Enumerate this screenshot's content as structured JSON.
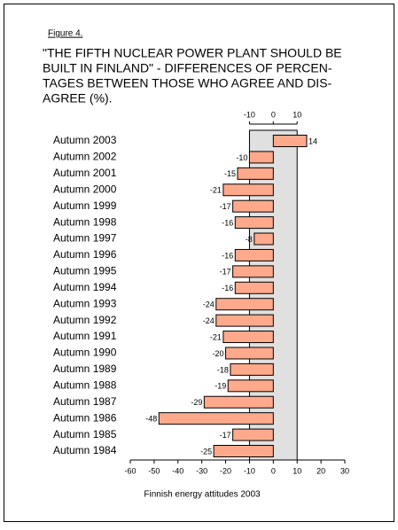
{
  "chart_data": {
    "type": "bar",
    "orientation": "horizontal",
    "figure_label": "Figure 4.",
    "title_lines": [
      "\"THE FIFTH NUCLEAR POWER PLANT SHOULD BE",
      "BUILT IN FINLAND\" - DIFFERENCES OF PERCEN-",
      "TAGES BETWEEN THOSE WHO AGREE AND DIS-",
      "AGREE (%)."
    ],
    "caption": "Finnish energy attitudes 2003",
    "categories": [
      "Autumn 2003",
      "Autumn 2002",
      "Autumn 2001",
      "Autumn 2000",
      "Autumn 1999",
      "Autumn 1998",
      "Autumn 1997",
      "Autumn 1996",
      "Autumn 1995",
      "Autumn 1994",
      "Autumn 1993",
      "Autumn 1992",
      "Autumn 1991",
      "Autumn 1990",
      "Autumn 1989",
      "Autumn 1988",
      "Autumn 1987",
      "Autumn 1986",
      "Autumn 1985",
      "Autumn 1984"
    ],
    "values": [
      14,
      -10,
      -15,
      -21,
      -17,
      -16,
      -8,
      -16,
      -17,
      -16,
      -24,
      -24,
      -21,
      -20,
      -18,
      -19,
      -29,
      -48,
      -17,
      -25
    ],
    "color": "#ffa98c",
    "xlim": [
      -60,
      30
    ],
    "xticks": [
      -60,
      -50,
      -40,
      -30,
      -20,
      -10,
      0,
      10,
      20,
      30
    ],
    "x2lim": [
      -10,
      10
    ],
    "x2ticks": [
      -10,
      0,
      10
    ],
    "band_color": "#e0e0e0"
  }
}
